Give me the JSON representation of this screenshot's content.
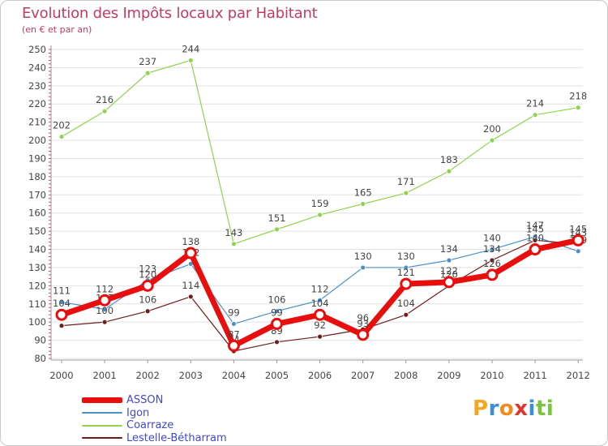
{
  "chart_data": {
    "type": "line",
    "title": "Evolution des Impôts locaux par Habitant",
    "subtitle": "(en € et par an)",
    "categories": [
      "2000",
      "2001",
      "2002",
      "2003",
      "2004",
      "2005",
      "2006",
      "2007",
      "2008",
      "2009",
      "2010",
      "2011",
      "2012"
    ],
    "ylim": [
      80,
      250
    ],
    "yticks": [
      80,
      90,
      100,
      110,
      120,
      130,
      140,
      150,
      160,
      170,
      180,
      190,
      200,
      210,
      220,
      230,
      240,
      250
    ],
    "series": [
      {
        "name": "Coarraze",
        "color": "#8ed44f",
        "values": [
          202,
          216,
          237,
          244,
          143,
          151,
          159,
          165,
          171,
          183,
          200,
          214,
          218
        ]
      },
      {
        "name": "Igon",
        "color": "#4a90c8",
        "values": [
          111,
          107,
          123,
          132,
          99,
          106,
          112,
          130,
          130,
          134,
          140,
          147,
          139
        ]
      },
      {
        "name": "Lestelle-Bétharram",
        "color": "#6e1c1c",
        "values": [
          98,
          100,
          106,
          114,
          84,
          89,
          92,
          96,
          104,
          120,
          134,
          145,
          143
        ]
      },
      {
        "name": "ASSON",
        "color": "#e80e0e",
        "values": [
          104,
          112,
          120,
          138,
          87,
          99,
          104,
          93,
          121,
          122,
          126,
          140,
          145
        ]
      }
    ],
    "legend": [
      "ASSON",
      "Igon",
      "Coarraze",
      "Lestelle-Bétharram"
    ]
  },
  "brand": {
    "name": "Proxiti",
    "letters": [
      "P",
      "r",
      "o",
      "x",
      "i",
      "t",
      "i"
    ]
  }
}
